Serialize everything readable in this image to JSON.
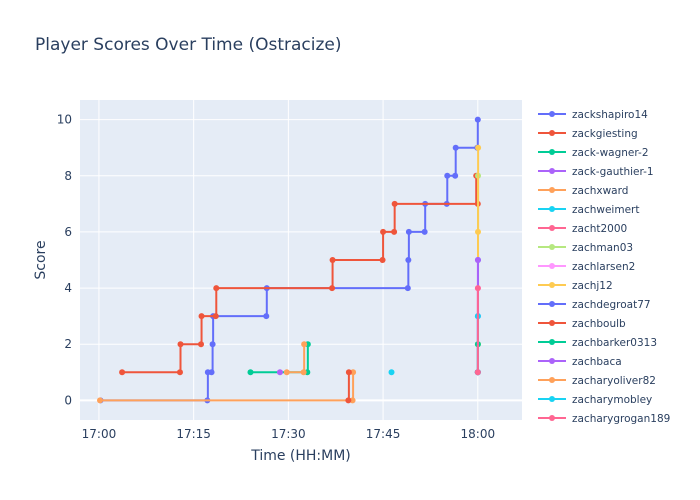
{
  "chart_data": {
    "type": "line",
    "line_shape": "step",
    "title": "Player Scores Over Time (Ostracize)",
    "xlabel": "Time (HH:MM)",
    "ylabel": "Score",
    "xlim": [
      "16:57",
      "18:07"
    ],
    "ylim": [
      -0.7,
      10.7
    ],
    "x_ticks": [
      "17:00",
      "17:15",
      "17:30",
      "17:45",
      "18:00"
    ],
    "y_ticks": [
      0,
      2,
      4,
      6,
      8,
      10
    ],
    "grid": true,
    "legend_position": "right",
    "series": [
      {
        "name": "zackshapiro14",
        "color": "#636efa",
        "points": [
          [
            "17:00:15",
            0
          ],
          [
            "17:17:10",
            0
          ],
          [
            "17:17:15",
            1
          ],
          [
            "17:17:50",
            1
          ],
          [
            "17:18:00",
            2
          ],
          [
            "17:18:05",
            3
          ],
          [
            "17:26:30",
            3
          ],
          [
            "17:26:35",
            4
          ],
          [
            "17:48:55",
            4
          ],
          [
            "17:49:00",
            5
          ],
          [
            "17:49:05",
            6
          ],
          [
            "17:51:35",
            6
          ],
          [
            "17:51:40",
            7
          ],
          [
            "17:55:05",
            7
          ],
          [
            "17:55:10",
            8
          ],
          [
            "17:56:25",
            8
          ],
          [
            "17:56:30",
            9
          ],
          [
            "17:59:55",
            9
          ],
          [
            "18:00:00",
            10
          ]
        ]
      },
      {
        "name": "zackgiesting",
        "color": "#ef553b",
        "points": [
          [
            "17:03:40",
            1
          ],
          [
            "17:12:50",
            1
          ],
          [
            "17:12:55",
            2
          ],
          [
            "17:16:10",
            2
          ],
          [
            "17:16:15",
            3
          ],
          [
            "17:18:30",
            3
          ],
          [
            "17:18:35",
            4
          ],
          [
            "17:36:55",
            4
          ],
          [
            "17:37:00",
            5
          ],
          [
            "17:44:55",
            5
          ],
          [
            "17:45:00",
            6
          ],
          [
            "17:46:45",
            6
          ],
          [
            "17:46:50",
            7
          ],
          [
            "18:00:00",
            7
          ],
          [
            "17:59:45",
            8
          ]
        ]
      },
      {
        "name": "zack-wagner-2",
        "color": "#00cc96",
        "points": [
          [
            "17:24:00",
            1
          ],
          [
            "17:33:00",
            1
          ],
          [
            "17:33:05",
            2
          ]
        ]
      },
      {
        "name": "zack-gauthier-1",
        "color": "#ab63fa",
        "points": [
          [
            "17:28:40",
            1
          ]
        ]
      },
      {
        "name": "zachxward",
        "color": "#ffa15a",
        "points": [
          [
            "17:00:10",
            0
          ],
          [
            "17:40:10",
            0
          ],
          [
            "17:40:15",
            1
          ]
        ]
      },
      {
        "name": "zachweimert",
        "color": "#19d3f3",
        "points": [
          [
            "17:46:20",
            1
          ]
        ]
      },
      {
        "name": "zacht2000",
        "color": "#ff6692",
        "points": [
          [
            "18:00:00",
            1
          ]
        ]
      },
      {
        "name": "zachman03",
        "color": "#b6e880",
        "points": [
          [
            "18:00:00",
            1
          ],
          [
            "18:00:01",
            2
          ],
          [
            "18:00:02",
            8
          ]
        ]
      },
      {
        "name": "zachlarsen2",
        "color": "#ff97ff",
        "points": [
          [
            "18:00:00",
            1
          ],
          [
            "18:00:01",
            4
          ]
        ]
      },
      {
        "name": "zachj12",
        "color": "#fecb52",
        "points": [
          [
            "18:00:00",
            1
          ],
          [
            "18:00:01",
            2
          ],
          [
            "18:00:02",
            6
          ],
          [
            "18:00:03",
            9
          ]
        ]
      },
      {
        "name": "zachdegroat77",
        "color": "#636efa",
        "points": [
          [
            "18:00:00",
            1
          ],
          [
            "18:00:01",
            3
          ],
          [
            "18:00:02",
            5
          ]
        ]
      },
      {
        "name": "zachboulb",
        "color": "#ef553b",
        "points": [
          [
            "17:39:30",
            0
          ],
          [
            "17:39:35",
            1
          ]
        ]
      },
      {
        "name": "zachbarker0313",
        "color": "#00cc96",
        "points": [
          [
            "18:00:00",
            1
          ],
          [
            "18:00:01",
            2
          ]
        ]
      },
      {
        "name": "zachbaca",
        "color": "#ab63fa",
        "points": [
          [
            "18:00:00",
            1
          ],
          [
            "18:00:01",
            5
          ]
        ]
      },
      {
        "name": "zacharyoliver82",
        "color": "#ffa15a",
        "points": [
          [
            "17:29:45",
            1
          ],
          [
            "17:32:25",
            1
          ],
          [
            "17:32:30",
            2
          ]
        ]
      },
      {
        "name": "zacharymobley",
        "color": "#19d3f3",
        "points": [
          [
            "18:00:00",
            1
          ],
          [
            "18:00:01",
            3
          ]
        ]
      },
      {
        "name": "zacharygrogan189",
        "color": "#ff6692",
        "points": [
          [
            "18:00:00",
            1
          ],
          [
            "18:00:01",
            4
          ]
        ]
      }
    ]
  }
}
